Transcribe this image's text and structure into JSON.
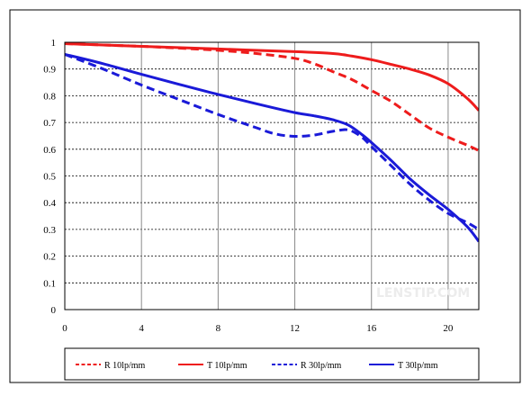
{
  "chart_data": {
    "type": "line",
    "title": "",
    "xlabel": "",
    "ylabel": "",
    "xlim": [
      0,
      21.6
    ],
    "ylim": [
      0,
      1
    ],
    "x_ticks": [
      0,
      4,
      8,
      12,
      16,
      20
    ],
    "x_tick_labels": [
      "0",
      "4",
      "8",
      "12",
      "16",
      "20"
    ],
    "y_ticks": [
      0,
      0.1,
      0.2,
      0.3,
      0.4,
      0.5,
      0.6,
      0.7,
      0.8,
      0.9,
      1
    ],
    "y_tick_labels": [
      "0",
      "0.1",
      "0.2",
      "0.3",
      "0.4",
      "0.5",
      "0.6",
      "0.7",
      "0.8",
      "0.9",
      "1"
    ],
    "grid": "horizontal dashed, vertical solid",
    "legend_position": "bottom",
    "series": [
      {
        "name": "R 10lp/mm",
        "color": "#ee1c1c",
        "dash": "dashed",
        "points": [
          [
            0,
            0.995
          ],
          [
            2,
            0.99
          ],
          [
            4,
            0.985
          ],
          [
            6,
            0.978
          ],
          [
            8,
            0.97
          ],
          [
            10,
            0.958
          ],
          [
            12,
            0.94
          ],
          [
            13,
            0.92
          ],
          [
            14,
            0.89
          ],
          [
            15,
            0.86
          ],
          [
            16,
            0.82
          ],
          [
            17,
            0.78
          ],
          [
            18,
            0.73
          ],
          [
            19,
            0.68
          ],
          [
            20,
            0.645
          ],
          [
            21,
            0.615
          ],
          [
            21.6,
            0.595
          ]
        ]
      },
      {
        "name": "T 10lp/mm",
        "color": "#ee1c1c",
        "dash": "solid",
        "points": [
          [
            0,
            0.995
          ],
          [
            4,
            0.985
          ],
          [
            8,
            0.975
          ],
          [
            12,
            0.965
          ],
          [
            14,
            0.958
          ],
          [
            15,
            0.948
          ],
          [
            16,
            0.935
          ],
          [
            17,
            0.918
          ],
          [
            18,
            0.9
          ],
          [
            19,
            0.878
          ],
          [
            20,
            0.845
          ],
          [
            21,
            0.79
          ],
          [
            21.6,
            0.745
          ]
        ]
      },
      {
        "name": "R 30lp/mm",
        "color": "#1a1ad8",
        "dash": "dashed",
        "points": [
          [
            0,
            0.955
          ],
          [
            2,
            0.9
          ],
          [
            4,
            0.84
          ],
          [
            6,
            0.785
          ],
          [
            8,
            0.73
          ],
          [
            10,
            0.68
          ],
          [
            11,
            0.657
          ],
          [
            12,
            0.648
          ],
          [
            13,
            0.653
          ],
          [
            14,
            0.667
          ],
          [
            14.8,
            0.672
          ],
          [
            15.5,
            0.645
          ],
          [
            16,
            0.61
          ],
          [
            17,
            0.54
          ],
          [
            18,
            0.47
          ],
          [
            19,
            0.41
          ],
          [
            20,
            0.36
          ],
          [
            21,
            0.325
          ],
          [
            21.6,
            0.3
          ]
        ]
      },
      {
        "name": "T 30lp/mm",
        "color": "#1a1ad8",
        "dash": "solid",
        "points": [
          [
            0,
            0.955
          ],
          [
            2,
            0.92
          ],
          [
            4,
            0.88
          ],
          [
            6,
            0.842
          ],
          [
            8,
            0.805
          ],
          [
            10,
            0.77
          ],
          [
            12,
            0.737
          ],
          [
            13,
            0.725
          ],
          [
            14,
            0.71
          ],
          [
            14.8,
            0.69
          ],
          [
            15.5,
            0.655
          ],
          [
            16,
            0.625
          ],
          [
            17,
            0.56
          ],
          [
            18,
            0.49
          ],
          [
            19,
            0.43
          ],
          [
            20,
            0.375
          ],
          [
            21,
            0.31
          ],
          [
            21.6,
            0.255
          ]
        ]
      }
    ]
  },
  "watermark": "LENSTIP.COM"
}
